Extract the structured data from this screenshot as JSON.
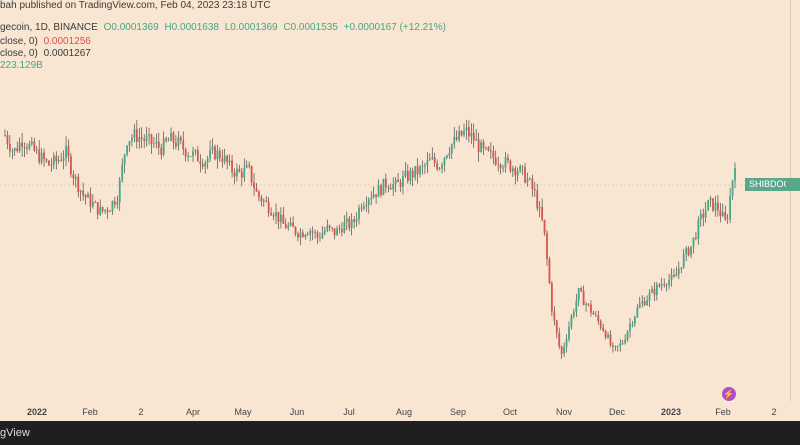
{
  "header": {
    "publisher": "bah published on TradingView.com, Feb 04, 2023 23:18 UTC",
    "symbol": "gecoin, 1D, BINANCE",
    "open": "O0.0001369",
    "high": "H0.0001638",
    "low": "L0.0001369",
    "close": "C0.0001535",
    "change": "+0.0000167 (+12.21%)",
    "ma1_label": "close, 0)",
    "ma1_value": "0.0001256",
    "ma2_label": "close, 0)",
    "ma2_value": "0.0001267",
    "volume": "223.129B"
  },
  "price_tag": "SHIBDOGE",
  "footer_brand": "gView",
  "x_axis_labels": [
    "2022",
    "Feb",
    "2",
    "Apr",
    "May",
    "Jun",
    "Jul",
    "Aug",
    "Sep",
    "Oct",
    "Nov",
    "Dec",
    "2023",
    "Feb",
    "2"
  ],
  "colors": {
    "up": "#3fa98a",
    "down": "#d9534f",
    "bg": "#f8e6d2"
  },
  "chart_data": {
    "type": "candlestick",
    "title": "",
    "xlabel": "",
    "ylabel": "",
    "x": [
      "2022",
      "Feb",
      "2",
      "Apr",
      "May",
      "Jun",
      "Jul",
      "Aug",
      "Sep",
      "Oct",
      "Nov",
      "Dec",
      "2023",
      "Feb",
      "2"
    ],
    "close_path": [
      0.000122,
      0.000118,
      0.000121,
      0.000119,
      0.000117,
      0.000115,
      0.000116,
      0.000118,
      0.000112,
      0.000108,
      0.000106,
      0.000104,
      0.000105,
      0.000108,
      0.000121,
      0.000122,
      0.000121,
      0.00012,
      0.000119,
      0.000121,
      0.00012,
      0.000118,
      0.000117,
      0.000116,
      0.000118,
      0.000117,
      0.000114,
      0.000113,
      0.000114,
      0.000108,
      0.000106,
      0.000104,
      0.000101,
      0.0001,
      9.9e-05,
      0.0001,
      9.8e-05,
      0.0001,
      9.9e-05,
      0.000101,
      0.000101,
      0.000106,
      0.000108,
      0.000109,
      0.000111,
      0.00011,
      0.000112,
      0.000113,
      0.000114,
      0.000116,
      0.000115,
      0.000119,
      0.000121,
      0.000123,
      0.000121,
      0.000118,
      0.000117,
      0.000116,
      0.000115,
      0.000114,
      0.000112,
      0.000108,
      0.0001,
      8e-05,
      7e-05,
      7.8e-05,
      8.5e-05,
      8.2e-05,
      7.9e-05,
      7.6e-05,
      7.1e-05,
      7.3e-05,
      7.8e-05,
      8.2e-05,
      8.4e-05,
      8.6e-05,
      8.8e-05,
      8.8e-05,
      9.3e-05,
      9.6e-05,
      0.000102,
      0.000106,
      0.000105,
      0.000101,
      0.000116
    ]
  }
}
